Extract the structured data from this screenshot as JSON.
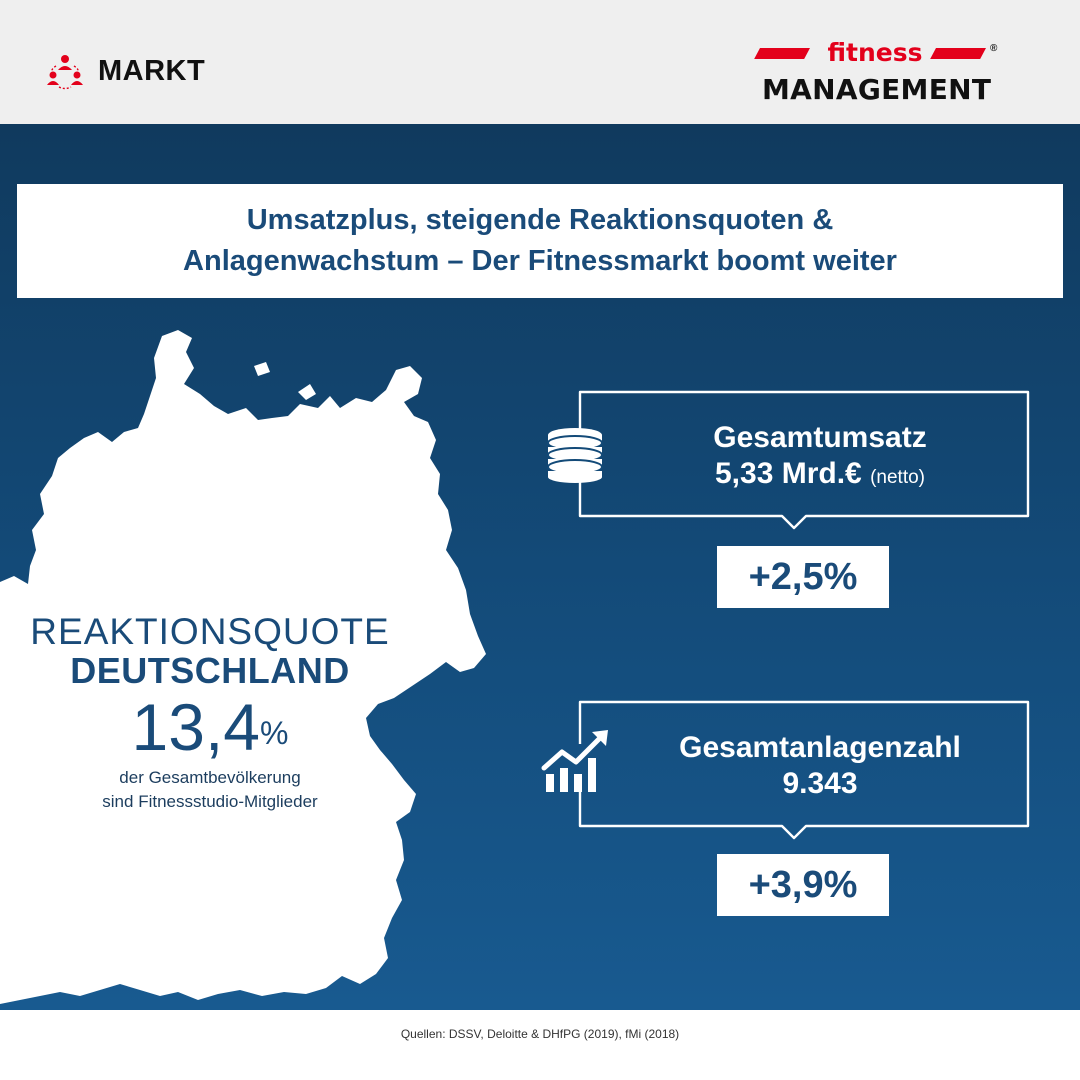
{
  "header": {
    "section_label": "MARKT",
    "logo": {
      "word_top": "fitness",
      "word_bottom": "MANAGEMENT",
      "registered": "®"
    },
    "colors": {
      "brand_red": "#e3001b",
      "background": "#efefef"
    }
  },
  "headline": {
    "line1": "Umsatzplus, steigende Reaktionsquoten &",
    "line2": "Anlagenwachstum – Der Fitnessmarkt boomt weiter"
  },
  "reaction_quote": {
    "label": "REAKTIONSQUOTE",
    "country": "DEUTSCHLAND",
    "value": "13,4",
    "unit": "%",
    "desc_line1": "der Gesamtbevölkerung",
    "desc_line2": "sind Fitnessstudio-Mitglieder"
  },
  "stats": [
    {
      "icon": "coin-stack-icon",
      "title": "Gesamtumsatz",
      "value": "5,33 Mrd.€",
      "unit": "(netto)",
      "change": "+2,5%"
    },
    {
      "icon": "growth-chart-icon",
      "title": "Gesamtanlagenzahl",
      "value": "9.343",
      "unit": "",
      "change": "+3,9%"
    }
  ],
  "footer": {
    "sources": "Quellen: DSSV, Deloitte & DHfPG (2019), fMi (2018)"
  },
  "colors": {
    "navy": "#1a4b79",
    "map": "#ffffff"
  }
}
